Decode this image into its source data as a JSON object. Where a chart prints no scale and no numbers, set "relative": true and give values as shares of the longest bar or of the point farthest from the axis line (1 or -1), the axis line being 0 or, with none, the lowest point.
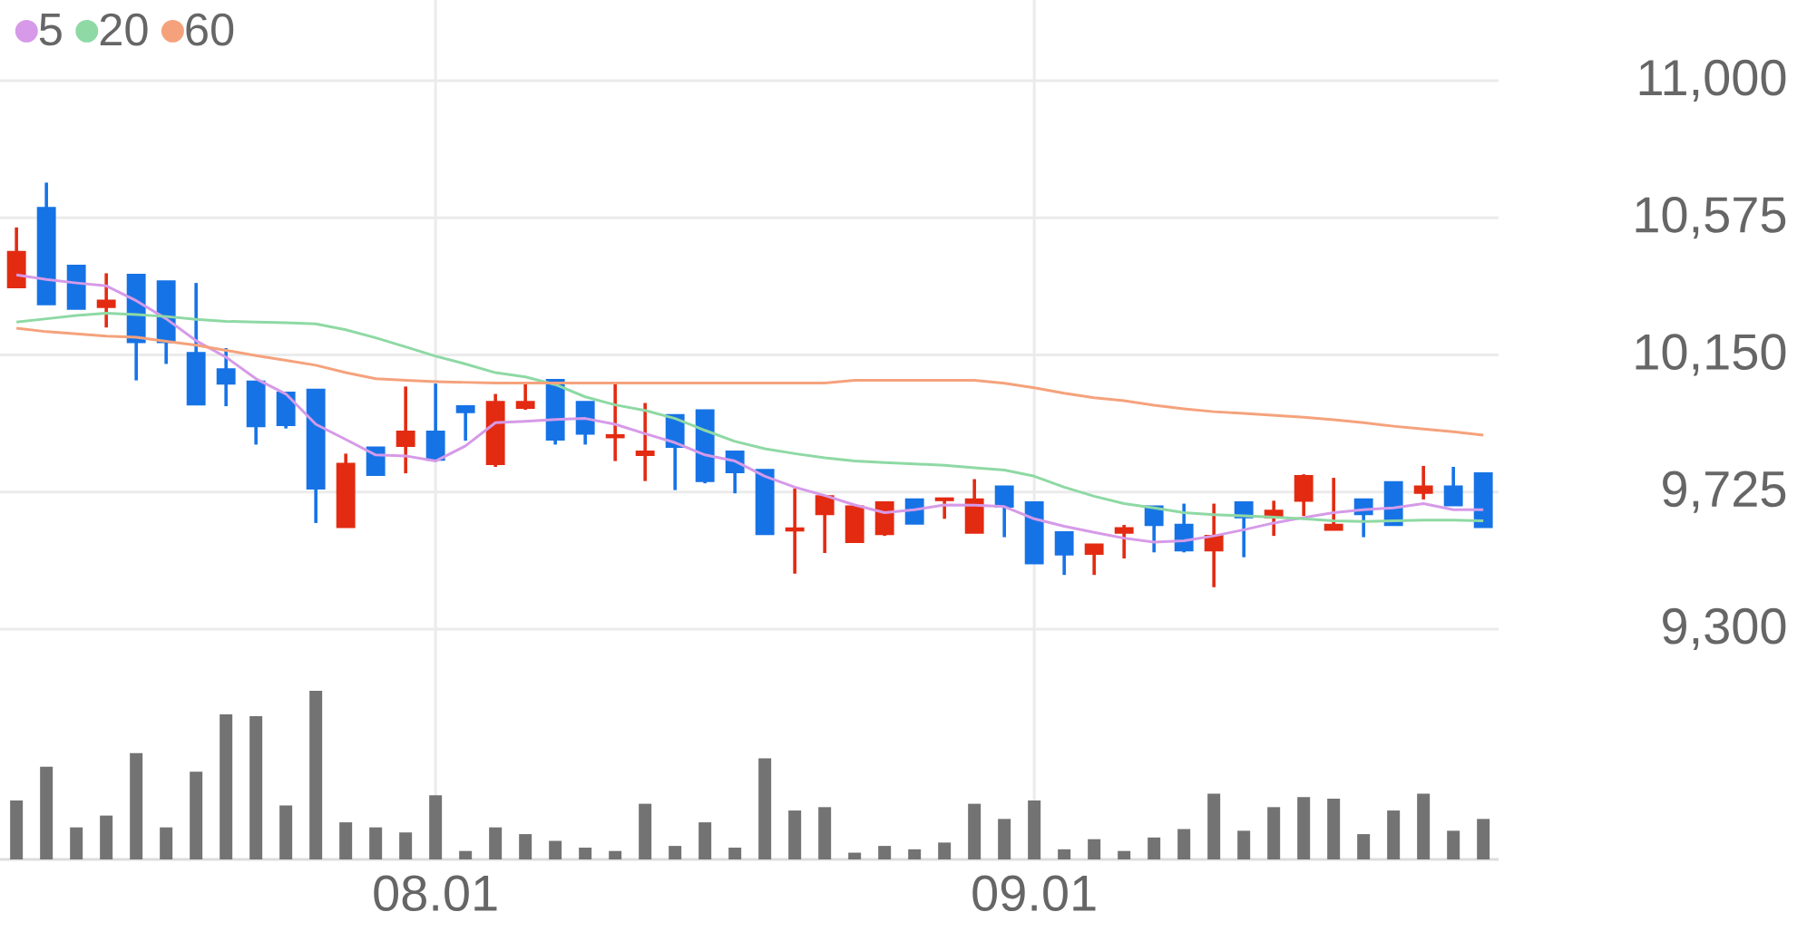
{
  "chart_data": [
    {
      "type": "candlestick",
      "categories": [
        null,
        null,
        null,
        null,
        null,
        null,
        null,
        null,
        null,
        null,
        null,
        null,
        null,
        null,
        "08.01",
        null,
        null,
        null,
        null,
        null,
        null,
        null,
        null,
        null,
        null,
        null,
        null,
        null,
        null,
        null,
        null,
        null,
        null,
        null,
        "09.01",
        null,
        null,
        null,
        null,
        null,
        null,
        null,
        null,
        null,
        null,
        null,
        null,
        null,
        null,
        null
      ],
      "ohlc": [
        [
          10360,
          10545,
          10360,
          10469
        ],
        [
          10605,
          10684,
          10307,
          10307
        ],
        [
          10426,
          10426,
          10293,
          10293
        ],
        [
          10299,
          10403,
          10235,
          10318
        ],
        [
          10398,
          10398,
          10071,
          10190
        ],
        [
          10378,
          10378,
          10122,
          10190
        ],
        [
          10156,
          10373,
          9997,
          9997
        ],
        [
          10105,
          10171,
          9991,
          10061
        ],
        [
          10067,
          10067,
          9872,
          9929
        ],
        [
          10033,
          10033,
          9922,
          9933
        ],
        [
          10042,
          10042,
          9629,
          9736
        ],
        [
          9617,
          9844,
          9617,
          9812
        ],
        [
          9863,
          9863,
          9778,
          9778
        ],
        [
          9868,
          10052,
          9783,
          9912
        ],
        [
          9912,
          10061,
          9825,
          9825
        ],
        [
          9991,
          9991,
          9884,
          9973
        ],
        [
          9812,
          10029,
          9803,
          10004
        ],
        [
          9986,
          10063,
          9980,
          10004
        ],
        [
          10072,
          10072,
          9872,
          9888
        ],
        [
          10004,
          10004,
          9872,
          9906
        ],
        [
          9895,
          10061,
          9821,
          9901
        ],
        [
          9840,
          10001,
          9759,
          9850
        ],
        [
          9963,
          9963,
          9731,
          9865
        ],
        [
          9978,
          9978,
          9752,
          9759
        ],
        [
          9850,
          9850,
          9721,
          9787
        ],
        [
          9793,
          9793,
          9595,
          9595
        ],
        [
          9606,
          9736,
          9472,
          9612
        ],
        [
          9657,
          9712,
          9536,
          9712
        ],
        [
          9570,
          9685,
          9570,
          9680
        ],
        [
          9595,
          9693,
          9589,
          9693
        ],
        [
          9702,
          9702,
          9627,
          9627
        ],
        [
          9700,
          9705,
          9642,
          9705
        ],
        [
          9599,
          9765,
          9599,
          9702
        ],
        [
          9742,
          9742,
          9585,
          9680
        ],
        [
          9693,
          9693,
          9504,
          9504
        ],
        [
          9600,
          9600,
          9468,
          9532
        ],
        [
          9534,
          9562,
          9468,
          9562
        ],
        [
          9599,
          9623,
          9519,
          9613
        ],
        [
          9680,
          9680,
          9538,
          9623
        ],
        [
          9623,
          9689,
          9538,
          9544
        ],
        [
          9544,
          9689,
          9430,
          9589
        ],
        [
          9693,
          9693,
          9523,
          9647
        ],
        [
          9647,
          9698,
          9589,
          9667
        ],
        [
          9698,
          9780,
          9651,
          9774
        ],
        [
          9608,
          9769,
          9608,
          9623
        ],
        [
          9702,
          9702,
          9585,
          9657
        ],
        [
          9755,
          9755,
          9623,
          9623
        ],
        [
          9723,
          9806,
          9702,
          9742
        ],
        [
          9742,
          9803,
          9684,
          9684
        ],
        [
          9783,
          9783,
          9617,
          9617
        ]
      ],
      "colors": [
        "#e32b12",
        "#1673e6",
        "#1673e6",
        "#e32b12",
        "#1673e6",
        "#1673e6",
        "#1673e6",
        "#1673e6",
        "#1673e6",
        "#1673e6",
        "#1673e6",
        "#e32b12",
        "#1673e6",
        "#e32b12",
        "#1673e6",
        "#1673e6",
        "#e32b12",
        "#e32b12",
        "#1673e6",
        "#1673e6",
        "#e32b12",
        "#e32b12",
        "#1673e6",
        "#1673e6",
        "#1673e6",
        "#1673e6",
        "#e32b12",
        "#e32b12",
        "#e32b12",
        "#e32b12",
        "#1673e6",
        "#e32b12",
        "#e32b12",
        "#1673e6",
        "#1673e6",
        "#1673e6",
        "#e32b12",
        "#e32b12",
        "#1673e6",
        "#1673e6",
        "#e32b12",
        "#1673e6",
        "#e32b12",
        "#e32b12",
        "#e32b12",
        "#1673e6",
        "#1673e6",
        "#e32b12",
        "#1673e6",
        "#1673e6"
      ],
      "series": [
        {
          "name": "5",
          "type": "line",
          "color": "#d69ae8",
          "values": [
            10398,
            10384,
            10373,
            10364,
            10318,
            10262,
            10194,
            10143,
            10076,
            10029,
            9935,
            9888,
            9840,
            9837,
            9821,
            9868,
            9940,
            9944,
            9950,
            9953,
            9935,
            9906,
            9878,
            9840,
            9821,
            9774,
            9740,
            9714,
            9685,
            9661,
            9670,
            9685,
            9684,
            9680,
            9642,
            9619,
            9600,
            9582,
            9570,
            9574,
            9589,
            9608,
            9629,
            9646,
            9661,
            9670,
            9676,
            9689,
            9670,
            9670
          ]
        },
        {
          "name": "20",
          "type": "line",
          "color": "#8ed9a4",
          "values": [
            10252,
            10262,
            10272,
            10279,
            10275,
            10269,
            10260,
            10254,
            10252,
            10250,
            10246,
            10228,
            10203,
            10175,
            10146,
            10122,
            10095,
            10082,
            10058,
            10020,
            9995,
            9978,
            9953,
            9916,
            9882,
            9859,
            9844,
            9831,
            9821,
            9816,
            9812,
            9808,
            9800,
            9793,
            9774,
            9740,
            9712,
            9689,
            9676,
            9661,
            9655,
            9651,
            9647,
            9642,
            9636,
            9634,
            9636,
            9638,
            9638,
            9636
          ]
        },
        {
          "name": "60",
          "type": "line",
          "color": "#f5a27c",
          "values": [
            10233,
            10222,
            10215,
            10208,
            10205,
            10192,
            10180,
            10164,
            10148,
            10133,
            10118,
            10095,
            10076,
            10071,
            10067,
            10065,
            10063,
            10063,
            10063,
            10063,
            10063,
            10063,
            10063,
            10063,
            10063,
            10063,
            10063,
            10063,
            10071,
            10071,
            10071,
            10071,
            10071,
            10062,
            10048,
            10031,
            10017,
            10008,
            9994,
            9983,
            9974,
            9969,
            9963,
            9957,
            9949,
            9940,
            9929,
            9920,
            9912,
            9901
          ]
        }
      ],
      "ylim": [
        9300,
        11250
      ],
      "yticks": [
        {
          "value": 9300,
          "label": "9,300"
        },
        {
          "value": 9725,
          "label": "9,725"
        },
        {
          "value": 10150,
          "label": "10,150"
        },
        {
          "value": 10575,
          "label": "10,575"
        },
        {
          "value": 11000,
          "label": "11,000"
        }
      ],
      "grid": true,
      "legend": "top left",
      "tick_labels": "y"
    },
    {
      "type": "bar",
      "categories": [
        null,
        null,
        null,
        null,
        null,
        null,
        null,
        null,
        null,
        null,
        null,
        null,
        null,
        null,
        "08.01",
        null,
        null,
        null,
        null,
        null,
        null,
        null,
        null,
        null,
        null,
        null,
        null,
        null,
        null,
        null,
        null,
        null,
        null,
        null,
        "09.01",
        null,
        null,
        null,
        null,
        null,
        null,
        null,
        null,
        null,
        null,
        null,
        null,
        null,
        null,
        null
      ],
      "values": [
        0.35,
        0.55,
        0.19,
        0.26,
        0.63,
        0.19,
        0.52,
        0.86,
        0.85,
        0.32,
        1,
        0.22,
        0.19,
        0.16,
        0.38,
        0.05,
        0.19,
        0.15,
        0.11,
        0.07,
        0.05,
        0.33,
        0.08,
        0.22,
        0.07,
        0.6,
        0.29,
        0.31,
        0.04,
        0.08,
        0.06,
        0.1,
        0.33,
        0.24,
        0.35,
        0.06,
        0.12,
        0.05,
        0.13,
        0.18,
        0.39,
        0.17,
        0.31,
        0.37,
        0.36,
        0.15,
        0.29,
        0.39,
        0.17,
        0.24
      ],
      "color": "#737373",
      "relative": true,
      "grid": "x"
    }
  ]
}
